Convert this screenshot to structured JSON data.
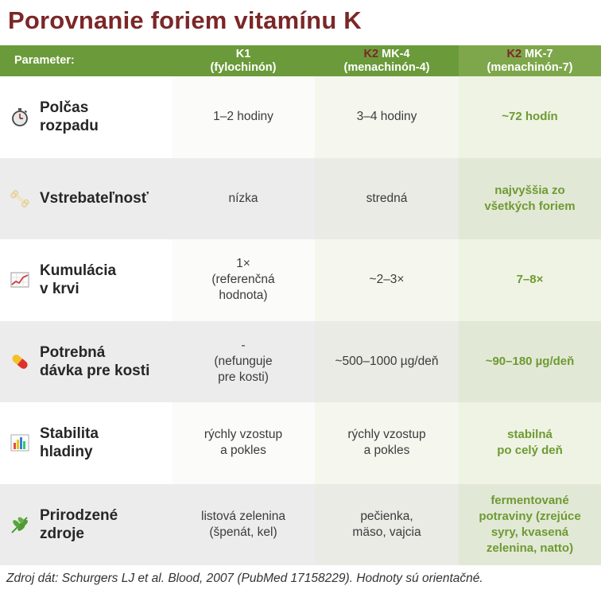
{
  "title": "Porovnanie foriem vitamínu K",
  "header": {
    "param": "Parameter:",
    "col1": {
      "prefix": "",
      "line1": "K1",
      "line2": "(fylochinón)"
    },
    "col2": {
      "prefix": "K2",
      "line1": " MK-4",
      "line2": "(menachinón-4)"
    },
    "col3": {
      "prefix": "K2",
      "line1": " MK-7",
      "line2": "(menachinón-7)"
    }
  },
  "rows": [
    {
      "icon": "stopwatch-icon",
      "label": "Polčas\nrozpadu",
      "k1": "1–2 hodiny",
      "mk4": "3–4 hodiny",
      "mk7": "~72 hodín"
    },
    {
      "icon": "bone-icon",
      "label": "Vstrebateľnosť",
      "k1": "nízka",
      "mk4": "stredná",
      "mk7": "najvyššia zo\nvšetkých foriem"
    },
    {
      "icon": "trend-chart-icon",
      "label": "Kumulácia\nv krvi",
      "k1": "1×\n(referenčná\nhodnota)",
      "mk4": "~2–3×",
      "mk7": "7–8×"
    },
    {
      "icon": "pill-icon",
      "label": "Potrebná\ndávka pre kosti",
      "k1": "-\n(nefunguje\npre kosti)",
      "mk4": "~500–1000 µg/deň",
      "mk7": "~90–180 µg/deň"
    },
    {
      "icon": "bar-chart-icon",
      "label": "Stabilita\nhladiny",
      "k1": "rýchly vzostup\na pokles",
      "mk4": "rýchly vzostup\na pokles",
      "mk7": "stabilná\npo celý deň"
    },
    {
      "icon": "leaf-icon",
      "label": "Prirodzené\nzdroje",
      "k1": "listová zelenina\n(špenát, kel)",
      "mk4": "pečienka,\nmäso, vajcia",
      "mk7": "fermentované\npotraviny (zrejúce\nsyry, kvasená\nzelenina, natto)"
    }
  ],
  "footnote": "Zdroj dát: Schurgers LJ et al. Blood, 2007 (PubMed 17158229). Hodnoty sú orientačné."
}
